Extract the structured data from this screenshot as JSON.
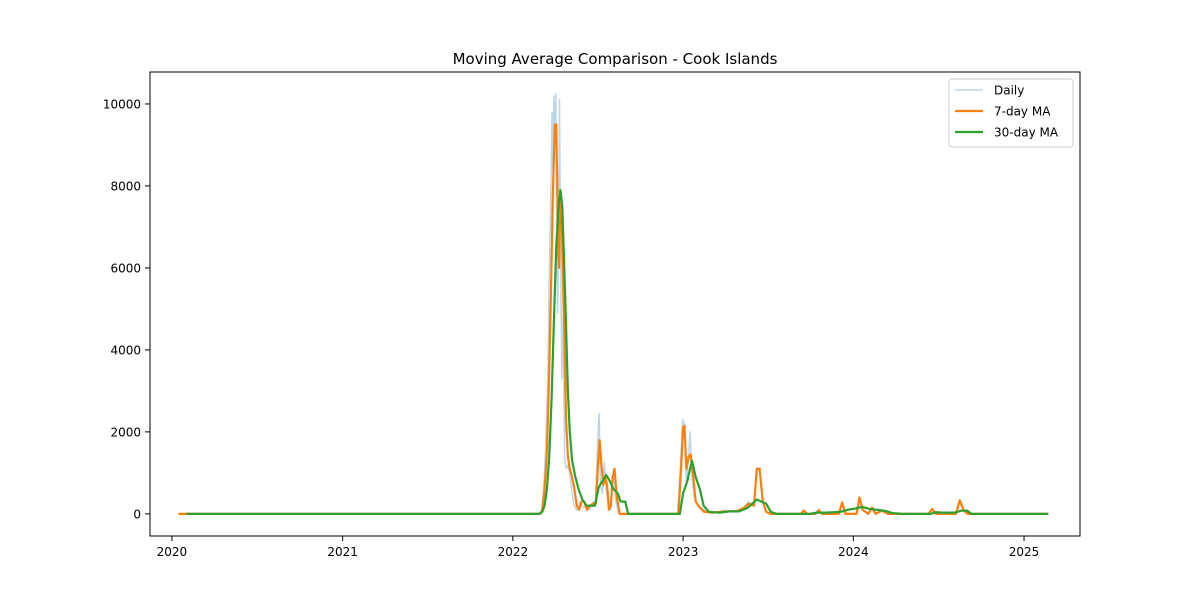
{
  "chart_data": {
    "type": "line",
    "title": "Moving Average Comparison - Cook Islands",
    "xlabel": "",
    "ylabel": "",
    "xlim": [
      "2019-11-15",
      "2025-05-01"
    ],
    "ylim": [
      -540,
      10780
    ],
    "x_ticks": [
      "2020",
      "2021",
      "2022",
      "2023",
      "2024",
      "2025"
    ],
    "y_ticks": [
      0,
      2000,
      4000,
      6000,
      8000,
      10000
    ],
    "grid": false,
    "legend": {
      "position": "top-right",
      "entries": [
        "Daily",
        "7-day MA",
        "30-day MA"
      ]
    },
    "series": [
      {
        "name": "Daily",
        "color": "#1f77b4",
        "opacity": 0.3,
        "points": [
          [
            "2020-01-15",
            0
          ],
          [
            "2022-03-01",
            0
          ],
          [
            "2022-03-05",
            200
          ],
          [
            "2022-03-09",
            800
          ],
          [
            "2022-03-13",
            1800
          ],
          [
            "2022-03-17",
            3400
          ],
          [
            "2022-03-20",
            5700
          ],
          [
            "2022-03-23",
            7500
          ],
          [
            "2022-03-26",
            9800
          ],
          [
            "2022-03-28",
            8300
          ],
          [
            "2022-03-30",
            10200
          ],
          [
            "2022-04-01",
            9000
          ],
          [
            "2022-04-03",
            10250
          ],
          [
            "2022-04-05",
            7200
          ],
          [
            "2022-04-07",
            4900
          ],
          [
            "2022-04-09",
            6200
          ],
          [
            "2022-04-11",
            10100
          ],
          [
            "2022-04-13",
            6800
          ],
          [
            "2022-04-16",
            3300
          ],
          [
            "2022-04-19",
            4800
          ],
          [
            "2022-04-22",
            1300
          ],
          [
            "2022-04-26",
            1100
          ],
          [
            "2022-04-30",
            1200
          ],
          [
            "2022-05-04",
            900
          ],
          [
            "2022-05-07",
            600
          ],
          [
            "2022-05-12",
            200
          ],
          [
            "2022-05-18",
            100
          ],
          [
            "2022-05-24",
            300
          ],
          [
            "2022-06-01",
            150
          ],
          [
            "2022-06-08",
            200
          ],
          [
            "2022-06-15",
            100
          ],
          [
            "2022-06-22",
            300
          ],
          [
            "2022-06-27",
            300
          ],
          [
            "2022-07-02",
            1800
          ],
          [
            "2022-07-05",
            2450
          ],
          [
            "2022-07-08",
            700
          ],
          [
            "2022-07-12",
            500
          ],
          [
            "2022-07-16",
            1250
          ],
          [
            "2022-07-20",
            600
          ],
          [
            "2022-07-25",
            200
          ],
          [
            "2022-07-30",
            100
          ],
          [
            "2022-08-05",
            1100
          ],
          [
            "2022-08-10",
            300
          ],
          [
            "2022-08-16",
            0
          ],
          [
            "2022-12-20",
            0
          ],
          [
            "2022-12-26",
            1100
          ],
          [
            "2022-12-31",
            2300
          ],
          [
            "2023-01-04",
            2200
          ],
          [
            "2023-01-08",
            700
          ],
          [
            "2023-01-12",
            1300
          ],
          [
            "2023-01-16",
            2000
          ],
          [
            "2023-01-20",
            900
          ],
          [
            "2023-01-25",
            400
          ],
          [
            "2023-02-01",
            200
          ],
          [
            "2023-02-10",
            150
          ],
          [
            "2023-02-20",
            50
          ],
          [
            "2023-03-10",
            30
          ],
          [
            "2023-04-01",
            80
          ],
          [
            "2023-04-25",
            50
          ],
          [
            "2023-05-10",
            150
          ],
          [
            "2023-05-22",
            300
          ],
          [
            "2023-06-01",
            200
          ],
          [
            "2023-06-08",
            1100
          ],
          [
            "2023-06-14",
            1050
          ],
          [
            "2023-06-20",
            300
          ],
          [
            "2023-06-26",
            100
          ],
          [
            "2023-07-05",
            0
          ],
          [
            "2023-09-10",
            0
          ],
          [
            "2023-09-16",
            90
          ],
          [
            "2023-09-22",
            0
          ],
          [
            "2023-10-12",
            0
          ],
          [
            "2023-10-18",
            100
          ],
          [
            "2023-10-24",
            0
          ],
          [
            "2023-12-01",
            0
          ],
          [
            "2023-12-08",
            300
          ],
          [
            "2023-12-14",
            0
          ],
          [
            "2024-01-08",
            0
          ],
          [
            "2024-01-14",
            400
          ],
          [
            "2024-01-20",
            100
          ],
          [
            "2024-02-02",
            0
          ],
          [
            "2024-02-10",
            150
          ],
          [
            "2024-02-18",
            0
          ],
          [
            "2024-03-01",
            100
          ],
          [
            "2024-03-15",
            0
          ],
          [
            "2024-06-10",
            0
          ],
          [
            "2024-06-18",
            120
          ],
          [
            "2024-06-26",
            0
          ],
          [
            "2024-08-08",
            0
          ],
          [
            "2024-08-16",
            350
          ],
          [
            "2024-08-24",
            100
          ],
          [
            "2024-09-01",
            0
          ],
          [
            "2025-02-22",
            0
          ]
        ]
      },
      {
        "name": "7-day MA",
        "color": "#ff7f0e",
        "opacity": 1,
        "points": [
          [
            "2020-01-15",
            0
          ],
          [
            "2022-03-01",
            0
          ],
          [
            "2022-03-05",
            100
          ],
          [
            "2022-03-10",
            600
          ],
          [
            "2022-03-15",
            1500
          ],
          [
            "2022-03-20",
            3500
          ],
          [
            "2022-03-24",
            5600
          ],
          [
            "2022-03-28",
            7900
          ],
          [
            "2022-04-01",
            9500
          ],
          [
            "2022-04-04",
            9500
          ],
          [
            "2022-04-06",
            8200
          ],
          [
            "2022-04-08",
            6500
          ],
          [
            "2022-04-10",
            6000
          ],
          [
            "2022-04-13",
            7600
          ],
          [
            "2022-04-16",
            7200
          ],
          [
            "2022-04-19",
            5500
          ],
          [
            "2022-04-22",
            4100
          ],
          [
            "2022-04-25",
            2300
          ],
          [
            "2022-04-29",
            1400
          ],
          [
            "2022-05-03",
            1100
          ],
          [
            "2022-05-08",
            900
          ],
          [
            "2022-05-13",
            600
          ],
          [
            "2022-05-18",
            200
          ],
          [
            "2022-05-23",
            100
          ],
          [
            "2022-05-28",
            300
          ],
          [
            "2022-06-03",
            300
          ],
          [
            "2022-06-09",
            100
          ],
          [
            "2022-06-15",
            200
          ],
          [
            "2022-06-22",
            250
          ],
          [
            "2022-06-28",
            250
          ],
          [
            "2022-07-03",
            1300
          ],
          [
            "2022-07-06",
            1800
          ],
          [
            "2022-07-10",
            1200
          ],
          [
            "2022-07-14",
            700
          ],
          [
            "2022-07-18",
            900
          ],
          [
            "2022-07-22",
            700
          ],
          [
            "2022-07-26",
            100
          ],
          [
            "2022-07-30",
            200
          ],
          [
            "2022-08-03",
            900
          ],
          [
            "2022-08-07",
            1100
          ],
          [
            "2022-08-12",
            400
          ],
          [
            "2022-08-18",
            0
          ],
          [
            "2022-12-22",
            0
          ],
          [
            "2022-12-28",
            1200
          ],
          [
            "2023-01-01",
            2100
          ],
          [
            "2023-01-04",
            2150
          ],
          [
            "2023-01-08",
            1100
          ],
          [
            "2023-01-13",
            1400
          ],
          [
            "2023-01-17",
            1450
          ],
          [
            "2023-01-22",
            1000
          ],
          [
            "2023-01-28",
            300
          ],
          [
            "2023-02-06",
            150
          ],
          [
            "2023-02-15",
            50
          ],
          [
            "2023-03-05",
            30
          ],
          [
            "2023-04-01",
            60
          ],
          [
            "2023-04-25",
            60
          ],
          [
            "2023-05-12",
            150
          ],
          [
            "2023-05-22",
            250
          ],
          [
            "2023-06-02",
            200
          ],
          [
            "2023-06-08",
            1100
          ],
          [
            "2023-06-14",
            1100
          ],
          [
            "2023-06-21",
            300
          ],
          [
            "2023-06-28",
            50
          ],
          [
            "2023-07-08",
            0
          ],
          [
            "2023-09-10",
            0
          ],
          [
            "2023-09-17",
            80
          ],
          [
            "2023-09-24",
            0
          ],
          [
            "2023-10-12",
            0
          ],
          [
            "2023-10-19",
            90
          ],
          [
            "2023-10-26",
            0
          ],
          [
            "2023-12-01",
            0
          ],
          [
            "2023-12-08",
            280
          ],
          [
            "2023-12-15",
            0
          ],
          [
            "2024-01-08",
            0
          ],
          [
            "2024-01-14",
            400
          ],
          [
            "2024-01-21",
            100
          ],
          [
            "2024-02-02",
            0
          ],
          [
            "2024-02-10",
            150
          ],
          [
            "2024-02-18",
            0
          ],
          [
            "2024-03-02",
            80
          ],
          [
            "2024-03-15",
            0
          ],
          [
            "2024-06-10",
            0
          ],
          [
            "2024-06-18",
            120
          ],
          [
            "2024-06-26",
            0
          ],
          [
            "2024-08-08",
            0
          ],
          [
            "2024-08-16",
            330
          ],
          [
            "2024-08-25",
            80
          ],
          [
            "2024-09-02",
            0
          ],
          [
            "2025-02-22",
            0
          ]
        ]
      },
      {
        "name": "30-day MA",
        "color": "#2ca02c",
        "opacity": 1,
        "points": [
          [
            "2020-02-01",
            0
          ],
          [
            "2022-02-26",
            0
          ],
          [
            "2022-03-05",
            50
          ],
          [
            "2022-03-10",
            200
          ],
          [
            "2022-03-15",
            600
          ],
          [
            "2022-03-20",
            1400
          ],
          [
            "2022-03-25",
            2800
          ],
          [
            "2022-03-30",
            4700
          ],
          [
            "2022-04-04",
            6500
          ],
          [
            "2022-04-09",
            7500
          ],
          [
            "2022-04-13",
            7900
          ],
          [
            "2022-04-17",
            7500
          ],
          [
            "2022-04-21",
            6100
          ],
          [
            "2022-04-25",
            4600
          ],
          [
            "2022-04-29",
            3000
          ],
          [
            "2022-05-03",
            2000
          ],
          [
            "2022-05-08",
            1300
          ],
          [
            "2022-05-15",
            900
          ],
          [
            "2022-05-22",
            600
          ],
          [
            "2022-05-30",
            350
          ],
          [
            "2022-06-08",
            200
          ],
          [
            "2022-06-18",
            200
          ],
          [
            "2022-06-26",
            200
          ],
          [
            "2022-07-04",
            650
          ],
          [
            "2022-07-12",
            800
          ],
          [
            "2022-07-20",
            950
          ],
          [
            "2022-07-28",
            800
          ],
          [
            "2022-08-05",
            600
          ],
          [
            "2022-08-14",
            500
          ],
          [
            "2022-08-20",
            300
          ],
          [
            "2022-08-30",
            300
          ],
          [
            "2022-09-05",
            0
          ],
          [
            "2022-12-25",
            0
          ],
          [
            "2023-01-01",
            500
          ],
          [
            "2023-01-10",
            800
          ],
          [
            "2023-01-20",
            1300
          ],
          [
            "2023-01-28",
            900
          ],
          [
            "2023-02-06",
            600
          ],
          [
            "2023-02-14",
            200
          ],
          [
            "2023-02-25",
            50
          ],
          [
            "2023-03-20",
            30
          ],
          [
            "2023-04-10",
            60
          ],
          [
            "2023-05-01",
            60
          ],
          [
            "2023-05-20",
            150
          ],
          [
            "2023-06-08",
            350
          ],
          [
            "2023-06-18",
            300
          ],
          [
            "2023-06-28",
            250
          ],
          [
            "2023-07-08",
            50
          ],
          [
            "2023-07-20",
            0
          ],
          [
            "2023-10-01",
            0
          ],
          [
            "2023-10-15",
            30
          ],
          [
            "2023-11-05",
            30
          ],
          [
            "2023-12-05",
            50
          ],
          [
            "2023-12-20",
            100
          ],
          [
            "2024-01-05",
            130
          ],
          [
            "2024-01-20",
            170
          ],
          [
            "2024-02-05",
            120
          ],
          [
            "2024-02-20",
            100
          ],
          [
            "2024-03-10",
            70
          ],
          [
            "2024-03-25",
            20
          ],
          [
            "2024-04-15",
            0
          ],
          [
            "2024-06-15",
            0
          ],
          [
            "2024-06-25",
            40
          ],
          [
            "2024-07-10",
            30
          ],
          [
            "2024-08-05",
            30
          ],
          [
            "2024-08-20",
            80
          ],
          [
            "2024-09-01",
            80
          ],
          [
            "2024-09-10",
            0
          ],
          [
            "2025-02-22",
            0
          ]
        ]
      }
    ]
  }
}
